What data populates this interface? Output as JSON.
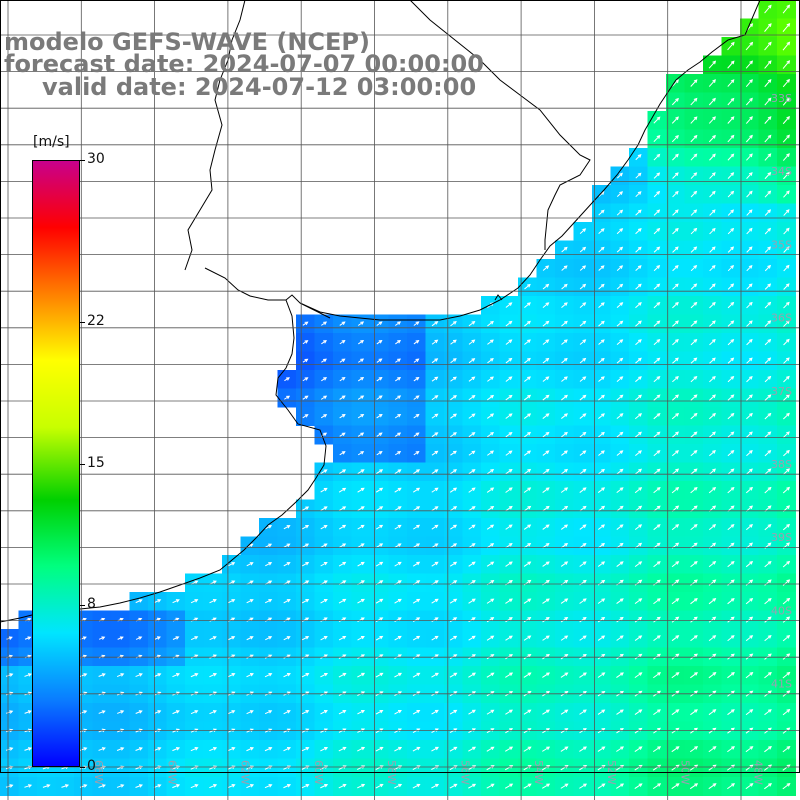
{
  "title": {
    "line1": "modelo GEFS-WAVE (NCEP)",
    "line2": "forecast date: 2024-07-07 00:00:00",
    "line3": "valid date: 2024-07-12 03:00:00"
  },
  "colorbar": {
    "unit": "[m/s]",
    "min": 0,
    "max": 30,
    "ticks": [
      {
        "label": "30",
        "value": 30
      },
      {
        "label": "22",
        "value": 22
      },
      {
        "label": "15",
        "value": 15
      },
      {
        "label": "8",
        "value": 8
      },
      {
        "label": "0",
        "value": 0
      }
    ],
    "colors": [
      "#0000ff",
      "#0a7dff",
      "#00e5ff",
      "#00ff7f",
      "#00d000",
      "#c8ff00",
      "#ffff00",
      "#ff8000",
      "#ff0000",
      "#c8008c"
    ]
  },
  "lat_labels": [
    "33S",
    "34S",
    "35S",
    "36S",
    "37S",
    "38S",
    "39S",
    "40S",
    "41S"
  ],
  "lon_labels": [
    "66W",
    "64W",
    "62W",
    "60W",
    "58W",
    "56W",
    "54W",
    "52W",
    "50W",
    "48W"
  ],
  "colors": {
    "land": "#ffffff",
    "coast": "#000000",
    "grid": "#555555",
    "arrow": "#ffffff",
    "title": "#7a7a7a",
    "lat_label": "#9aa0b0"
  }
}
